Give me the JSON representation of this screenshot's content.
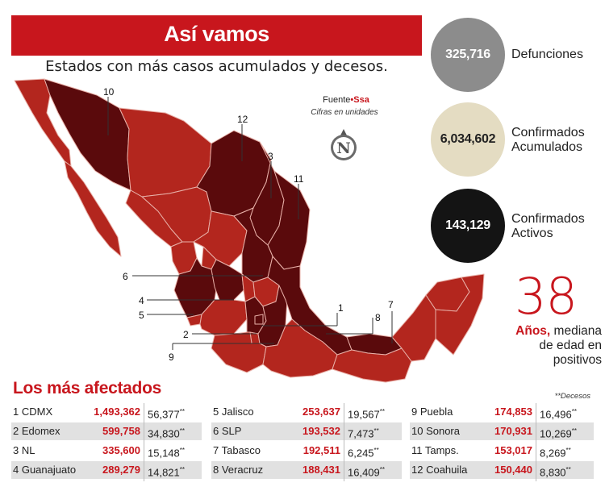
{
  "header": {
    "title": "Así vamos",
    "subtitle": "Estados con más casos acumulados y decesos."
  },
  "source": {
    "prefix": "Fuente",
    "name": "Ssa",
    "note": "Cifras en unidades",
    "logo_letter": "N"
  },
  "stats": [
    {
      "value": "325,716",
      "label_line1": "Defunciones",
      "label_line2": "",
      "color": "#8c8c8c",
      "text_color": "#ffffff"
    },
    {
      "value": "6,034,602",
      "label_line1": "Confirmados",
      "label_line2": "Acumulados",
      "color": "#e4dcc2",
      "text_color": "#222222"
    },
    {
      "value": "143,129",
      "label_line1": "Confirmados",
      "label_line2": "Activos",
      "color": "#141414",
      "text_color": "#ffffff"
    }
  ],
  "age": {
    "value": "38",
    "bold": "Años,",
    "text1": " mediana",
    "text2": "de edad en",
    "text3": "positivos"
  },
  "section": {
    "title": "Los más afectados",
    "deaths_note": "**Decesos"
  },
  "map_labels": [
    "10",
    "12",
    "3",
    "11",
    "6",
    "4",
    "5",
    "2",
    "9",
    "1",
    "8",
    "7"
  ],
  "rows": [
    {
      "label": "1 CDMX",
      "cases": "1,493,362",
      "deaths": "56,377",
      "mark": "**"
    },
    {
      "label": "2 Edomex",
      "cases": "599,758",
      "deaths": "34,830",
      "mark": "**"
    },
    {
      "label": "3 NL",
      "cases": "335,600",
      "deaths": "15,148",
      "mark": "**"
    },
    {
      "label": "4 Guanajuato",
      "cases": "289,279",
      "deaths": "14,821",
      "mark": "**"
    },
    {
      "label": "5 Jalisco",
      "cases": "253,637",
      "deaths": "19,567",
      "mark": "**"
    },
    {
      "label": "6 SLP",
      "cases": "193,532",
      "deaths": "7,473",
      "mark": "**"
    },
    {
      "label": "7 Tabasco",
      "cases": "192,511",
      "deaths": "6,245",
      "mark": "**"
    },
    {
      "label": "8 Veracruz",
      "cases": "188,431",
      "deaths": "16,409",
      "mark": "**"
    },
    {
      "label": "9 Puebla",
      "cases": "174,853",
      "deaths": "16,496",
      "mark": "**"
    },
    {
      "label": "10 Sonora",
      "cases": "170,931",
      "deaths": "10,269",
      "mark": "**"
    },
    {
      "label": "11 Tamps.",
      "cases": "153,017",
      "deaths": "8,269",
      "mark": "**"
    },
    {
      "label": "12 Coahuila",
      "cases": "150,440",
      "deaths": "8,830",
      "mark": "**"
    }
  ],
  "colors": {
    "brand_red": "#c8161d",
    "map_state": "#b3261e",
    "map_top": "#5a0a0c",
    "map_border": "#e8b0a8"
  }
}
